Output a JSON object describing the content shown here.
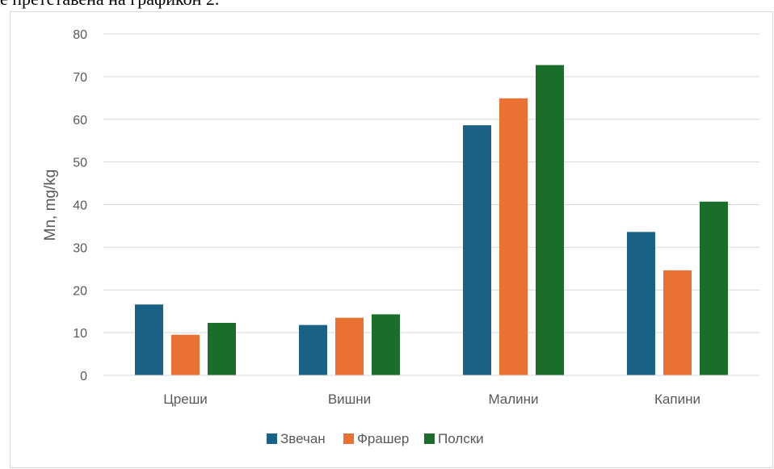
{
  "caption": "е претставена на графикон 2.",
  "chart_data": {
    "type": "bar",
    "title": "",
    "xlabel": "",
    "ylabel": "Mn, mg/kg",
    "ylim": [
      0,
      80
    ],
    "yticks": [
      0,
      10,
      20,
      30,
      40,
      50,
      60,
      70,
      80
    ],
    "grid": true,
    "legend_position": "bottom",
    "categories": [
      "Цреши",
      "Вишни",
      "Малини",
      "Капини"
    ],
    "series": [
      {
        "name": "Звечан",
        "color": "#1a6285",
        "values": [
          16.6,
          11.8,
          58.6,
          33.6
        ]
      },
      {
        "name": "Фрашер",
        "color": "#e97132",
        "values": [
          9.5,
          13.5,
          64.9,
          24.6
        ]
      },
      {
        "name": "Полски",
        "color": "#1b6e2a",
        "values": [
          12.3,
          14.3,
          72.7,
          40.7
        ]
      }
    ]
  }
}
